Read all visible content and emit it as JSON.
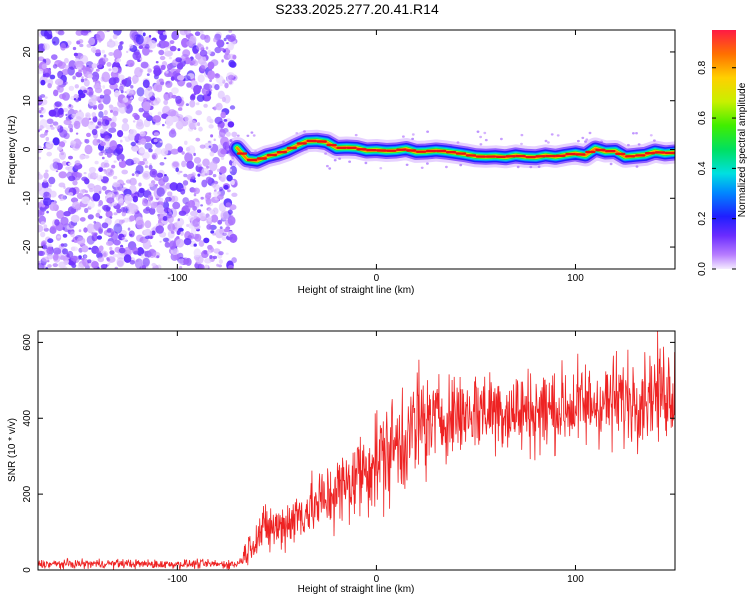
{
  "title": "S233.2025.277.20.41.R14",
  "colors": {
    "snr_line": "#ee2222",
    "trace_core": "#ee1111",
    "frame": "#000000"
  },
  "chart_data": [
    {
      "type": "heatmap",
      "xlabel": "Height of straight line (km)",
      "ylabel": "Frequency (Hz)",
      "xlim": [
        -170,
        150
      ],
      "ylim": [
        -24.5,
        24.5
      ],
      "xticks": [
        -100,
        0,
        100
      ],
      "xtick_labels": [
        "-100",
        "0",
        "100"
      ],
      "yticks": [
        -20,
        -10,
        0,
        10,
        20
      ],
      "ytick_labels": [
        "-20",
        "-10",
        "0",
        "10",
        "20"
      ],
      "noise_region_x": [
        -170,
        -71
      ],
      "trace": {
        "x": [
          -70,
          -65,
          -60,
          -55,
          -50,
          -45,
          -40,
          -35,
          -30,
          -25,
          -20,
          -15,
          -10,
          -5,
          0,
          5,
          10,
          15,
          20,
          25,
          30,
          35,
          40,
          45,
          50,
          55,
          60,
          65,
          70,
          75,
          80,
          85,
          90,
          95,
          100,
          105,
          110,
          115,
          120,
          125,
          130,
          135,
          140,
          145,
          150
        ],
        "freq_hz": [
          0.3,
          -2.0,
          -2.3,
          -1.4,
          -0.9,
          -0.2,
          0.8,
          1.7,
          1.8,
          1.5,
          0.3,
          0.4,
          0.3,
          -0.2,
          -0.1,
          -0.3,
          -0.2,
          0.1,
          -0.5,
          -0.4,
          -0.2,
          -0.4,
          -0.7,
          -1.0,
          -1.4,
          -1.5,
          -1.4,
          -1.6,
          -1.2,
          -1.5,
          -1.6,
          -1.2,
          -1.5,
          -1.1,
          -0.8,
          -1.2,
          0.2,
          -0.4,
          -0.3,
          -1.5,
          -1.3,
          -1.1,
          -0.4,
          -0.8,
          -0.6
        ]
      },
      "colorbar": {
        "label": "Normalized spectral amplitude",
        "range": [
          0,
          0.95
        ],
        "ticks": [
          0.0,
          0.2,
          0.4,
          0.6,
          0.8
        ],
        "tick_labels": [
          "0.0",
          "0.2",
          "0.4",
          "0.6",
          "0.8"
        ]
      }
    },
    {
      "type": "line",
      "xlabel": "Height of straight line (km)",
      "ylabel": "SNR (10 * v/v)",
      "xlim": [
        -170,
        150
      ],
      "ylim": [
        0,
        630
      ],
      "xticks": [
        -100,
        0,
        100
      ],
      "xtick_labels": [
        "-100",
        "0",
        "100"
      ],
      "yticks": [
        0,
        200,
        400,
        600
      ],
      "ytick_labels": [
        "0",
        "200",
        "400",
        "600"
      ],
      "series": [
        {
          "name": "SNR",
          "x": [
            -170,
            -150,
            -130,
            -110,
            -90,
            -70,
            -67,
            -64,
            -60,
            -55,
            -50,
            -45,
            -40,
            -35,
            -30,
            -25,
            -20,
            -15,
            -10,
            -5,
            0,
            5,
            10,
            15,
            20,
            25,
            30,
            40,
            50,
            60,
            70,
            80,
            90,
            100,
            110,
            120,
            130,
            140,
            150
          ],
          "values": [
            15,
            16,
            17,
            15,
            16,
            15,
            30,
            60,
            90,
            110,
            110,
            125,
            140,
            160,
            170,
            190,
            210,
            220,
            250,
            270,
            290,
            310,
            330,
            355,
            375,
            390,
            400,
            410,
            420,
            425,
            415,
            420,
            425,
            430,
            440,
            445,
            455,
            470,
            475
          ]
        }
      ]
    }
  ]
}
